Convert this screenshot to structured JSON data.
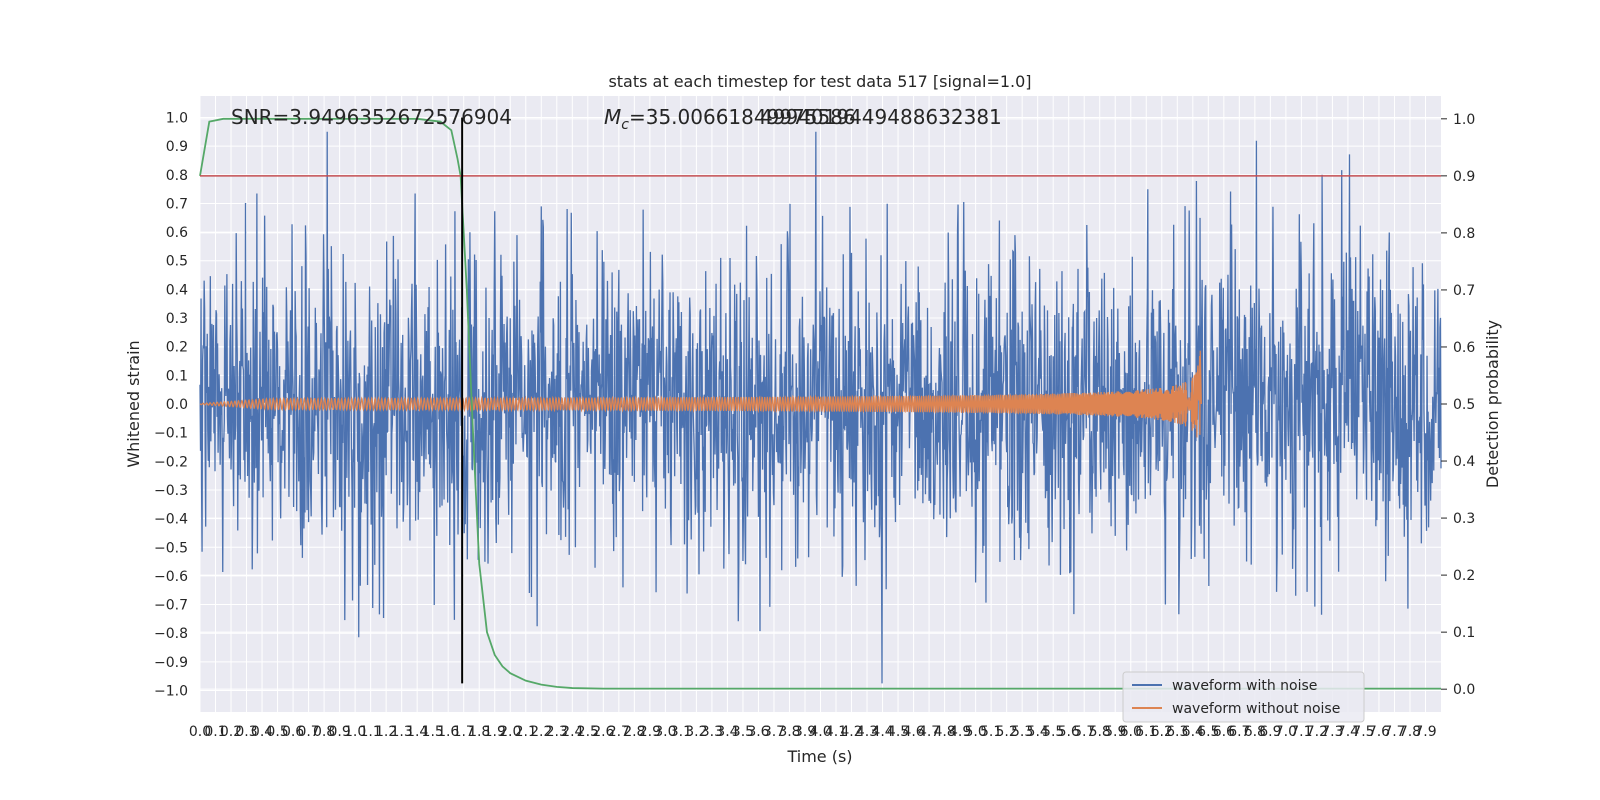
{
  "chart_data": {
    "type": "line",
    "title": "stats at each timestep for test data 517 [signal=1.0]",
    "xlabel": "Time (s)",
    "ylabel": "Whitened strain",
    "y2label": "Detection probability",
    "xlim": [
      0,
      8.0
    ],
    "ylim": [
      -1.075,
      1.075
    ],
    "y2lim": [
      -0.04,
      1.04
    ],
    "x_ticks": [
      0.0,
      0.1,
      0.2,
      0.3,
      0.4,
      0.5,
      0.6,
      0.7,
      0.8,
      0.9,
      1.0,
      1.1,
      1.2,
      1.3,
      1.4,
      1.5,
      1.6,
      1.7,
      1.8,
      1.9,
      2.0,
      2.1,
      2.2,
      2.3,
      2.4,
      2.5,
      2.6,
      2.7,
      2.8,
      2.9,
      3.0,
      3.1,
      3.2,
      3.3,
      3.4,
      3.5,
      3.6,
      3.7,
      3.8,
      3.9,
      4.0,
      4.1,
      4.2,
      4.3,
      4.4,
      4.5,
      4.6,
      4.7,
      4.8,
      4.9,
      5.0,
      5.1,
      5.2,
      5.3,
      5.4,
      5.5,
      5.6,
      5.7,
      5.8,
      5.9,
      6.0,
      6.1,
      6.2,
      6.3,
      6.4,
      6.5,
      6.6,
      6.7,
      6.8,
      6.9,
      7.0,
      7.1,
      7.2,
      7.3,
      7.4,
      7.5,
      7.6,
      7.7,
      7.8,
      7.9
    ],
    "y_ticks": [
      -1.0,
      -0.9,
      -0.8,
      -0.7,
      -0.6,
      -0.5,
      -0.4,
      -0.3,
      -0.2,
      -0.1,
      0.0,
      0.1,
      0.2,
      0.3,
      0.4,
      0.5,
      0.6,
      0.7,
      0.8,
      0.9,
      1.0
    ],
    "y2_ticks": [
      0.0,
      0.1,
      0.2,
      0.3,
      0.4,
      0.5,
      0.6,
      0.7,
      0.8,
      0.9,
      1.0
    ],
    "grid": true,
    "legend_position": "lower-right",
    "series": [
      {
        "name": "waveform with noise",
        "color": "#4c72b0",
        "kind": "noise",
        "envelope_x": [
          0,
          0.5,
          1.0,
          1.5,
          2.0,
          2.5,
          3.0,
          3.5,
          4.0,
          4.5,
          5.0,
          5.5,
          6.0,
          6.5,
          7.0,
          7.5,
          8.0
        ],
        "envelope_y": [
          0.45,
          0.48,
          0.5,
          0.5,
          0.48,
          0.5,
          0.48,
          0.5,
          0.5,
          0.5,
          0.5,
          0.5,
          0.52,
          0.5,
          0.5,
          0.5,
          0.48
        ]
      },
      {
        "name": "waveform without noise",
        "color": "#dd8452",
        "kind": "chirp",
        "start_x": 0.0,
        "end_x": 6.45,
        "peak_amplitude": 0.2
      },
      {
        "name": "",
        "color": "#55a868",
        "axis": "y2",
        "x": [
          0.0,
          0.06,
          0.15,
          0.3,
          0.6,
          1.0,
          1.4,
          1.55,
          1.62,
          1.66,
          1.68,
          1.72,
          1.76,
          1.8,
          1.85,
          1.9,
          1.95,
          2.0,
          2.1,
          2.2,
          2.3,
          2.4,
          2.6,
          3.0,
          4.0,
          5.0,
          6.0,
          7.0,
          8.0
        ],
        "y": [
          0.9,
          0.995,
          1.0,
          1.0,
          1.0,
          1.0,
          1.0,
          0.995,
          0.98,
          0.93,
          0.9,
          0.7,
          0.45,
          0.22,
          0.1,
          0.06,
          0.04,
          0.028,
          0.015,
          0.008,
          0.004,
          0.002,
          0.001,
          0.001,
          0.001,
          0.001,
          0.001,
          0.001,
          0.001
        ]
      }
    ],
    "hlines": [
      {
        "axis": "y2",
        "value": 0.9,
        "color": "#c44e52"
      }
    ],
    "vlines": [
      {
        "x": 1.69,
        "y_from": -0.975,
        "y_to": 1.0,
        "color": "#000000"
      }
    ],
    "annotations": {
      "snr": "SNR=3.9496352672576904",
      "mc_symbol": "M",
      "mc_sub": "c",
      "mc_value": "=35.00661849975586",
      "mc_overlap": "4994019449488632381"
    }
  }
}
